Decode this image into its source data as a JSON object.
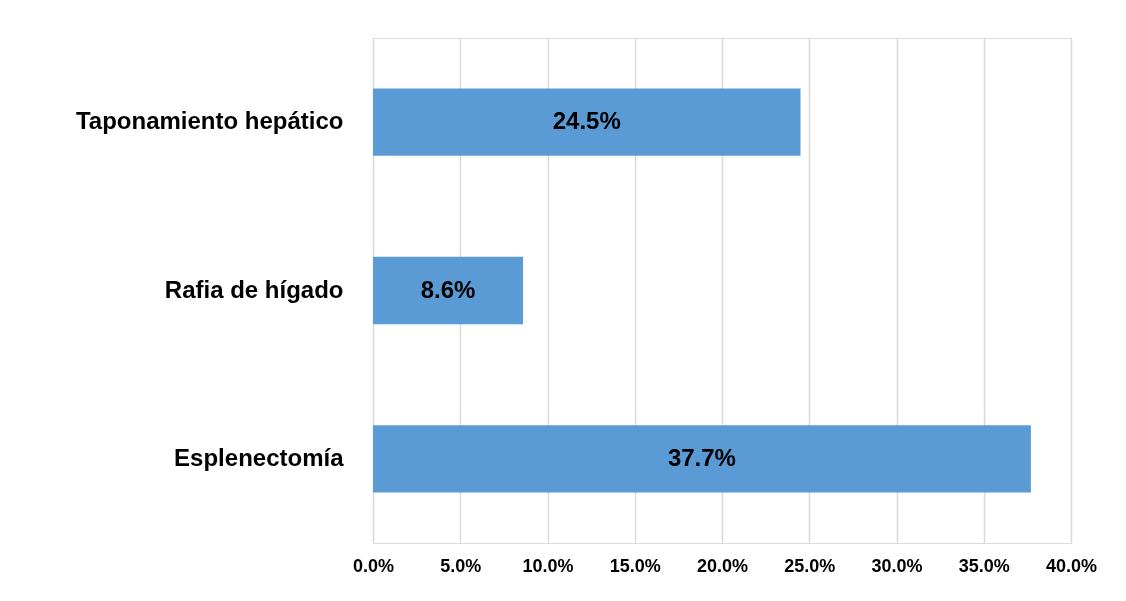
{
  "chart_data": {
    "type": "bar",
    "orientation": "horizontal",
    "categories": [
      "Taponamiento hepático",
      "Rafia de hígado",
      "Esplenectomía"
    ],
    "values": [
      24.5,
      8.6,
      37.7
    ],
    "value_labels": [
      "24.5%",
      "8.6%",
      "37.7%"
    ],
    "color": "#5b9bd5",
    "xlim": [
      0,
      40
    ],
    "xticks": [
      {
        "value": 0,
        "label": "0.0%"
      },
      {
        "value": 5,
        "label": "5.0%"
      },
      {
        "value": 10,
        "label": "10.0%"
      },
      {
        "value": 15,
        "label": "15.0%"
      },
      {
        "value": 20,
        "label": "20.0%"
      },
      {
        "value": 25,
        "label": "25.0%"
      },
      {
        "value": 30,
        "label": "30.0%"
      },
      {
        "value": 35,
        "label": "35.0%"
      },
      {
        "value": 40,
        "label": "40.0%"
      }
    ],
    "grid": "x"
  }
}
